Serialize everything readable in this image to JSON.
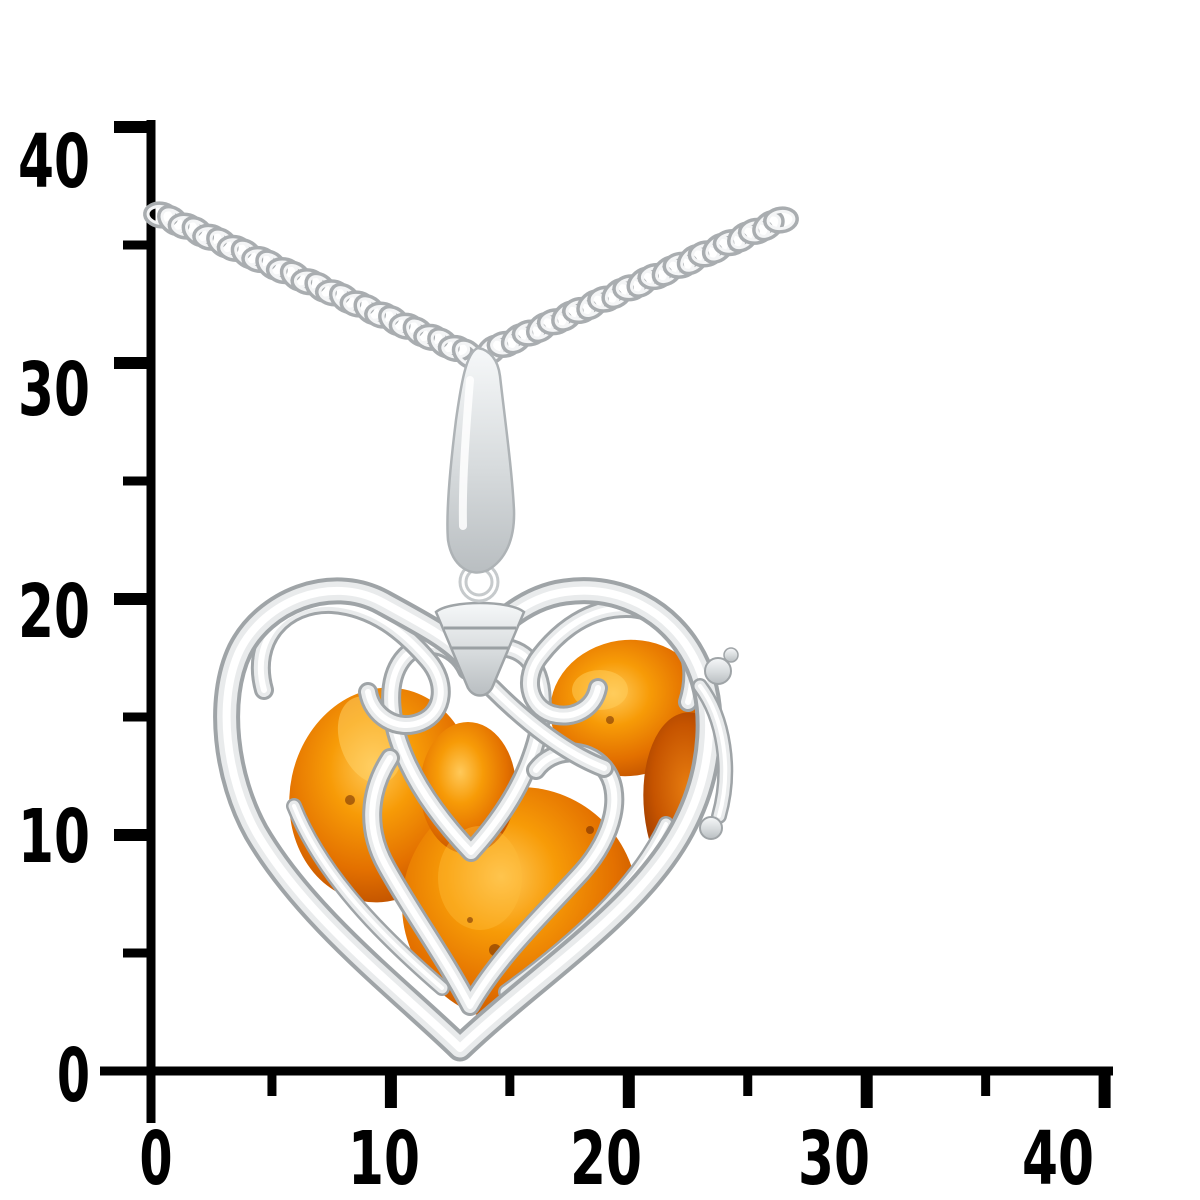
{
  "meta": {
    "image_kind": "jewelry product photograph on white background with measuring scale",
    "subject": "Open-work silver heart pendant set with cognac amber, hanging on a silver curb chain",
    "background_color": "#ffffff",
    "scale_ink_color": "#000000"
  },
  "scale": {
    "x_axis": {
      "min": 0,
      "max": 40,
      "minor_step": 5,
      "major_step": 10,
      "labels": [
        "0",
        "10",
        "20",
        "30",
        "40"
      ]
    },
    "y_axis": {
      "min": 0,
      "max": 40,
      "minor_step": 5,
      "major_step": 10,
      "labels": [
        "0",
        "10",
        "20",
        "30",
        "40"
      ]
    },
    "measurements_from_scale": {
      "heart_width_units": 22,
      "heart_height_units": 20,
      "pendant_with_bail_height_units": 30
    }
  },
  "pendant": {
    "chain": "silver curb chain entering from upper left and upper right, meeting at the bail",
    "bail": "tapered polished silver bail",
    "frame": "filigree heart frame of polished silver wire with nested heart scrolls",
    "stone": "cognac-coloured amber pieces visible through the open-work",
    "clasp": "small hinge beads on the right edge of the heart"
  },
  "colors": {
    "silver_light": "#f6f8f9",
    "silver_mid": "#d6dadc",
    "silver_dark": "#a7abae",
    "amber_highlight": "#ffc95a",
    "amber_bright": "#f79b07",
    "amber_mid": "#e37000",
    "amber_deep": "#8a2f00"
  }
}
